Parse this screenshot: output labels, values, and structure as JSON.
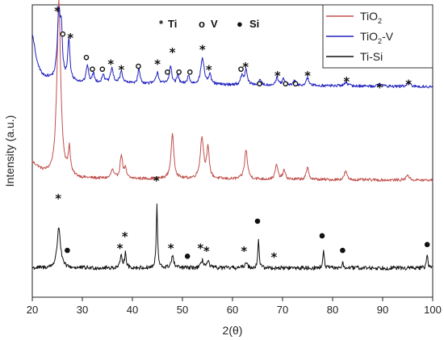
{
  "chart_data": {
    "type": "line",
    "xlabel": "2(θ)",
    "ylabel": "Intensity (a.u.)",
    "xlim": [
      20,
      100
    ],
    "ylim": [
      0,
      100
    ],
    "xticks": [
      20,
      30,
      40,
      50,
      60,
      70,
      80,
      90,
      100
    ],
    "grid": false,
    "y_tick_labels": false,
    "legend_position": "top-right",
    "marker_legend": [
      {
        "symbol": "*",
        "label": "Ti"
      },
      {
        "symbol": "o",
        "label": "V"
      },
      {
        "symbol": "●",
        "label": "Si"
      }
    ],
    "series": [
      {
        "name_main": "TiO",
        "name_sub": "2",
        "name_suffix": "",
        "color": "#c0504d",
        "baseline": 40,
        "noise": 0.5,
        "background": [
          [
            20,
            6
          ],
          [
            22,
            3
          ],
          [
            24,
            1.5
          ],
          [
            30,
            0.6
          ],
          [
            100,
            0
          ]
        ],
        "peaks": [
          [
            25.3,
            60,
            0.45
          ],
          [
            27.4,
            9,
            0.25
          ],
          [
            36.0,
            3,
            0.3
          ],
          [
            37.8,
            8,
            0.3
          ],
          [
            38.6,
            3,
            0.25
          ],
          [
            48.0,
            15,
            0.35
          ],
          [
            53.9,
            14,
            0.4
          ],
          [
            55.1,
            10,
            0.3
          ],
          [
            62.7,
            10,
            0.35
          ],
          [
            68.8,
            5,
            0.3
          ],
          [
            70.3,
            3,
            0.3
          ],
          [
            75.0,
            4,
            0.3
          ],
          [
            82.6,
            3,
            0.3
          ],
          [
            95,
            2,
            0.3
          ]
        ]
      },
      {
        "name_main": "TiO",
        "name_sub": "2",
        "name_suffix": "-V",
        "color": "#2020c0",
        "baseline": 72,
        "noise": 0.5,
        "background": [
          [
            20,
            18
          ],
          [
            21,
            8
          ],
          [
            22,
            4
          ],
          [
            24,
            2.5
          ],
          [
            30,
            1.5
          ],
          [
            50,
            0.8
          ],
          [
            100,
            0
          ]
        ],
        "peaks": [
          [
            25.3,
            22,
            0.35
          ],
          [
            25.8,
            14,
            0.25
          ],
          [
            27.3,
            14,
            0.25
          ],
          [
            31.0,
            6,
            0.25
          ],
          [
            32.2,
            3,
            0.25
          ],
          [
            34.2,
            3,
            0.25
          ],
          [
            35.9,
            5,
            0.3
          ],
          [
            37.8,
            4,
            0.3
          ],
          [
            41.3,
            5,
            0.25
          ],
          [
            45.0,
            4,
            0.3
          ],
          [
            47.6,
            6,
            0.3
          ],
          [
            49.1,
            3,
            0.25
          ],
          [
            51.2,
            3,
            0.25
          ],
          [
            54.0,
            9,
            0.4
          ],
          [
            55.5,
            3,
            0.3
          ],
          [
            61.9,
            3,
            0.3
          ],
          [
            62.7,
            5,
            0.3
          ],
          [
            65.5,
            1.5,
            0.3
          ],
          [
            68.9,
            2.5,
            0.3
          ],
          [
            70.2,
            2,
            0.3
          ],
          [
            72.4,
            1.5,
            0.3
          ],
          [
            75.0,
            2.5,
            0.3
          ],
          [
            82.7,
            1.5,
            0.3
          ],
          [
            89.5,
            1,
            0.3
          ],
          [
            95.2,
            1.5,
            0.3
          ]
        ]
      },
      {
        "name_main": "Ti-Si",
        "name_sub": "",
        "name_suffix": "",
        "color": "#111111",
        "baseline": 10,
        "noise": 0.7,
        "background": [
          [
            20,
            0
          ],
          [
            100,
            0
          ]
        ],
        "peaks": [
          [
            25.3,
            14,
            0.4
          ],
          [
            37.8,
            4,
            0.25
          ],
          [
            38.6,
            5,
            0.2
          ],
          [
            44.9,
            22,
            0.15
          ],
          [
            48.0,
            4,
            0.3
          ],
          [
            54.0,
            2.5,
            0.3
          ],
          [
            55.1,
            2,
            0.3
          ],
          [
            62.7,
            2,
            0.3
          ],
          [
            65.2,
            10,
            0.15
          ],
          [
            78.2,
            6,
            0.15
          ],
          [
            82.0,
            1.5,
            0.2
          ],
          [
            98.9,
            5,
            0.15
          ]
        ]
      }
    ],
    "annotations": [
      {
        "x": 25.0,
        "y": 98,
        "marker": "star"
      },
      {
        "x": 26.1,
        "y": 90,
        "marker": "circle"
      },
      {
        "x": 27.6,
        "y": 89,
        "marker": "star"
      },
      {
        "x": 30.8,
        "y": 82,
        "marker": "circle"
      },
      {
        "x": 32.0,
        "y": 78,
        "marker": "circle"
      },
      {
        "x": 34.0,
        "y": 78,
        "marker": "circle"
      },
      {
        "x": 35.7,
        "y": 80,
        "marker": "star"
      },
      {
        "x": 37.8,
        "y": 78,
        "marker": "star"
      },
      {
        "x": 41.2,
        "y": 79,
        "marker": "circle"
      },
      {
        "x": 45.0,
        "y": 80,
        "marker": "star"
      },
      {
        "x": 47.0,
        "y": 77,
        "marker": "circle"
      },
      {
        "x": 48.0,
        "y": 84,
        "marker": "star"
      },
      {
        "x": 49.3,
        "y": 77,
        "marker": "circle"
      },
      {
        "x": 51.5,
        "y": 77,
        "marker": "circle"
      },
      {
        "x": 54.0,
        "y": 85,
        "marker": "star"
      },
      {
        "x": 55.3,
        "y": 78,
        "marker": "star"
      },
      {
        "x": 61.7,
        "y": 78,
        "marker": "circle"
      },
      {
        "x": 62.6,
        "y": 79,
        "marker": "star"
      },
      {
        "x": 65.4,
        "y": 73,
        "marker": "circle"
      },
      {
        "x": 69.0,
        "y": 76,
        "marker": "star"
      },
      {
        "x": 70.6,
        "y": 73,
        "marker": "circle"
      },
      {
        "x": 72.6,
        "y": 73,
        "marker": "circle"
      },
      {
        "x": 75.0,
        "y": 76,
        "marker": "star"
      },
      {
        "x": 82.8,
        "y": 74,
        "marker": "star"
      },
      {
        "x": 89.4,
        "y": 72,
        "marker": "star"
      },
      {
        "x": 95.2,
        "y": 73,
        "marker": "star"
      },
      {
        "x": 25.2,
        "y": 34,
        "marker": "star"
      },
      {
        "x": 44.8,
        "y": 40,
        "marker": "star"
      },
      {
        "x": 27.0,
        "y": 16,
        "marker": "dot"
      },
      {
        "x": 37.5,
        "y": 17,
        "marker": "star"
      },
      {
        "x": 38.5,
        "y": 21,
        "marker": "star"
      },
      {
        "x": 47.7,
        "y": 17,
        "marker": "star"
      },
      {
        "x": 51.0,
        "y": 14,
        "marker": "dot"
      },
      {
        "x": 53.6,
        "y": 17,
        "marker": "star"
      },
      {
        "x": 54.8,
        "y": 16,
        "marker": "star"
      },
      {
        "x": 62.3,
        "y": 16,
        "marker": "star"
      },
      {
        "x": 65.0,
        "y": 26,
        "marker": "dot"
      },
      {
        "x": 68.3,
        "y": 14,
        "marker": "star"
      },
      {
        "x": 77.9,
        "y": 21,
        "marker": "dot"
      },
      {
        "x": 82.0,
        "y": 16,
        "marker": "dot"
      },
      {
        "x": 98.9,
        "y": 18,
        "marker": "dot"
      }
    ]
  }
}
